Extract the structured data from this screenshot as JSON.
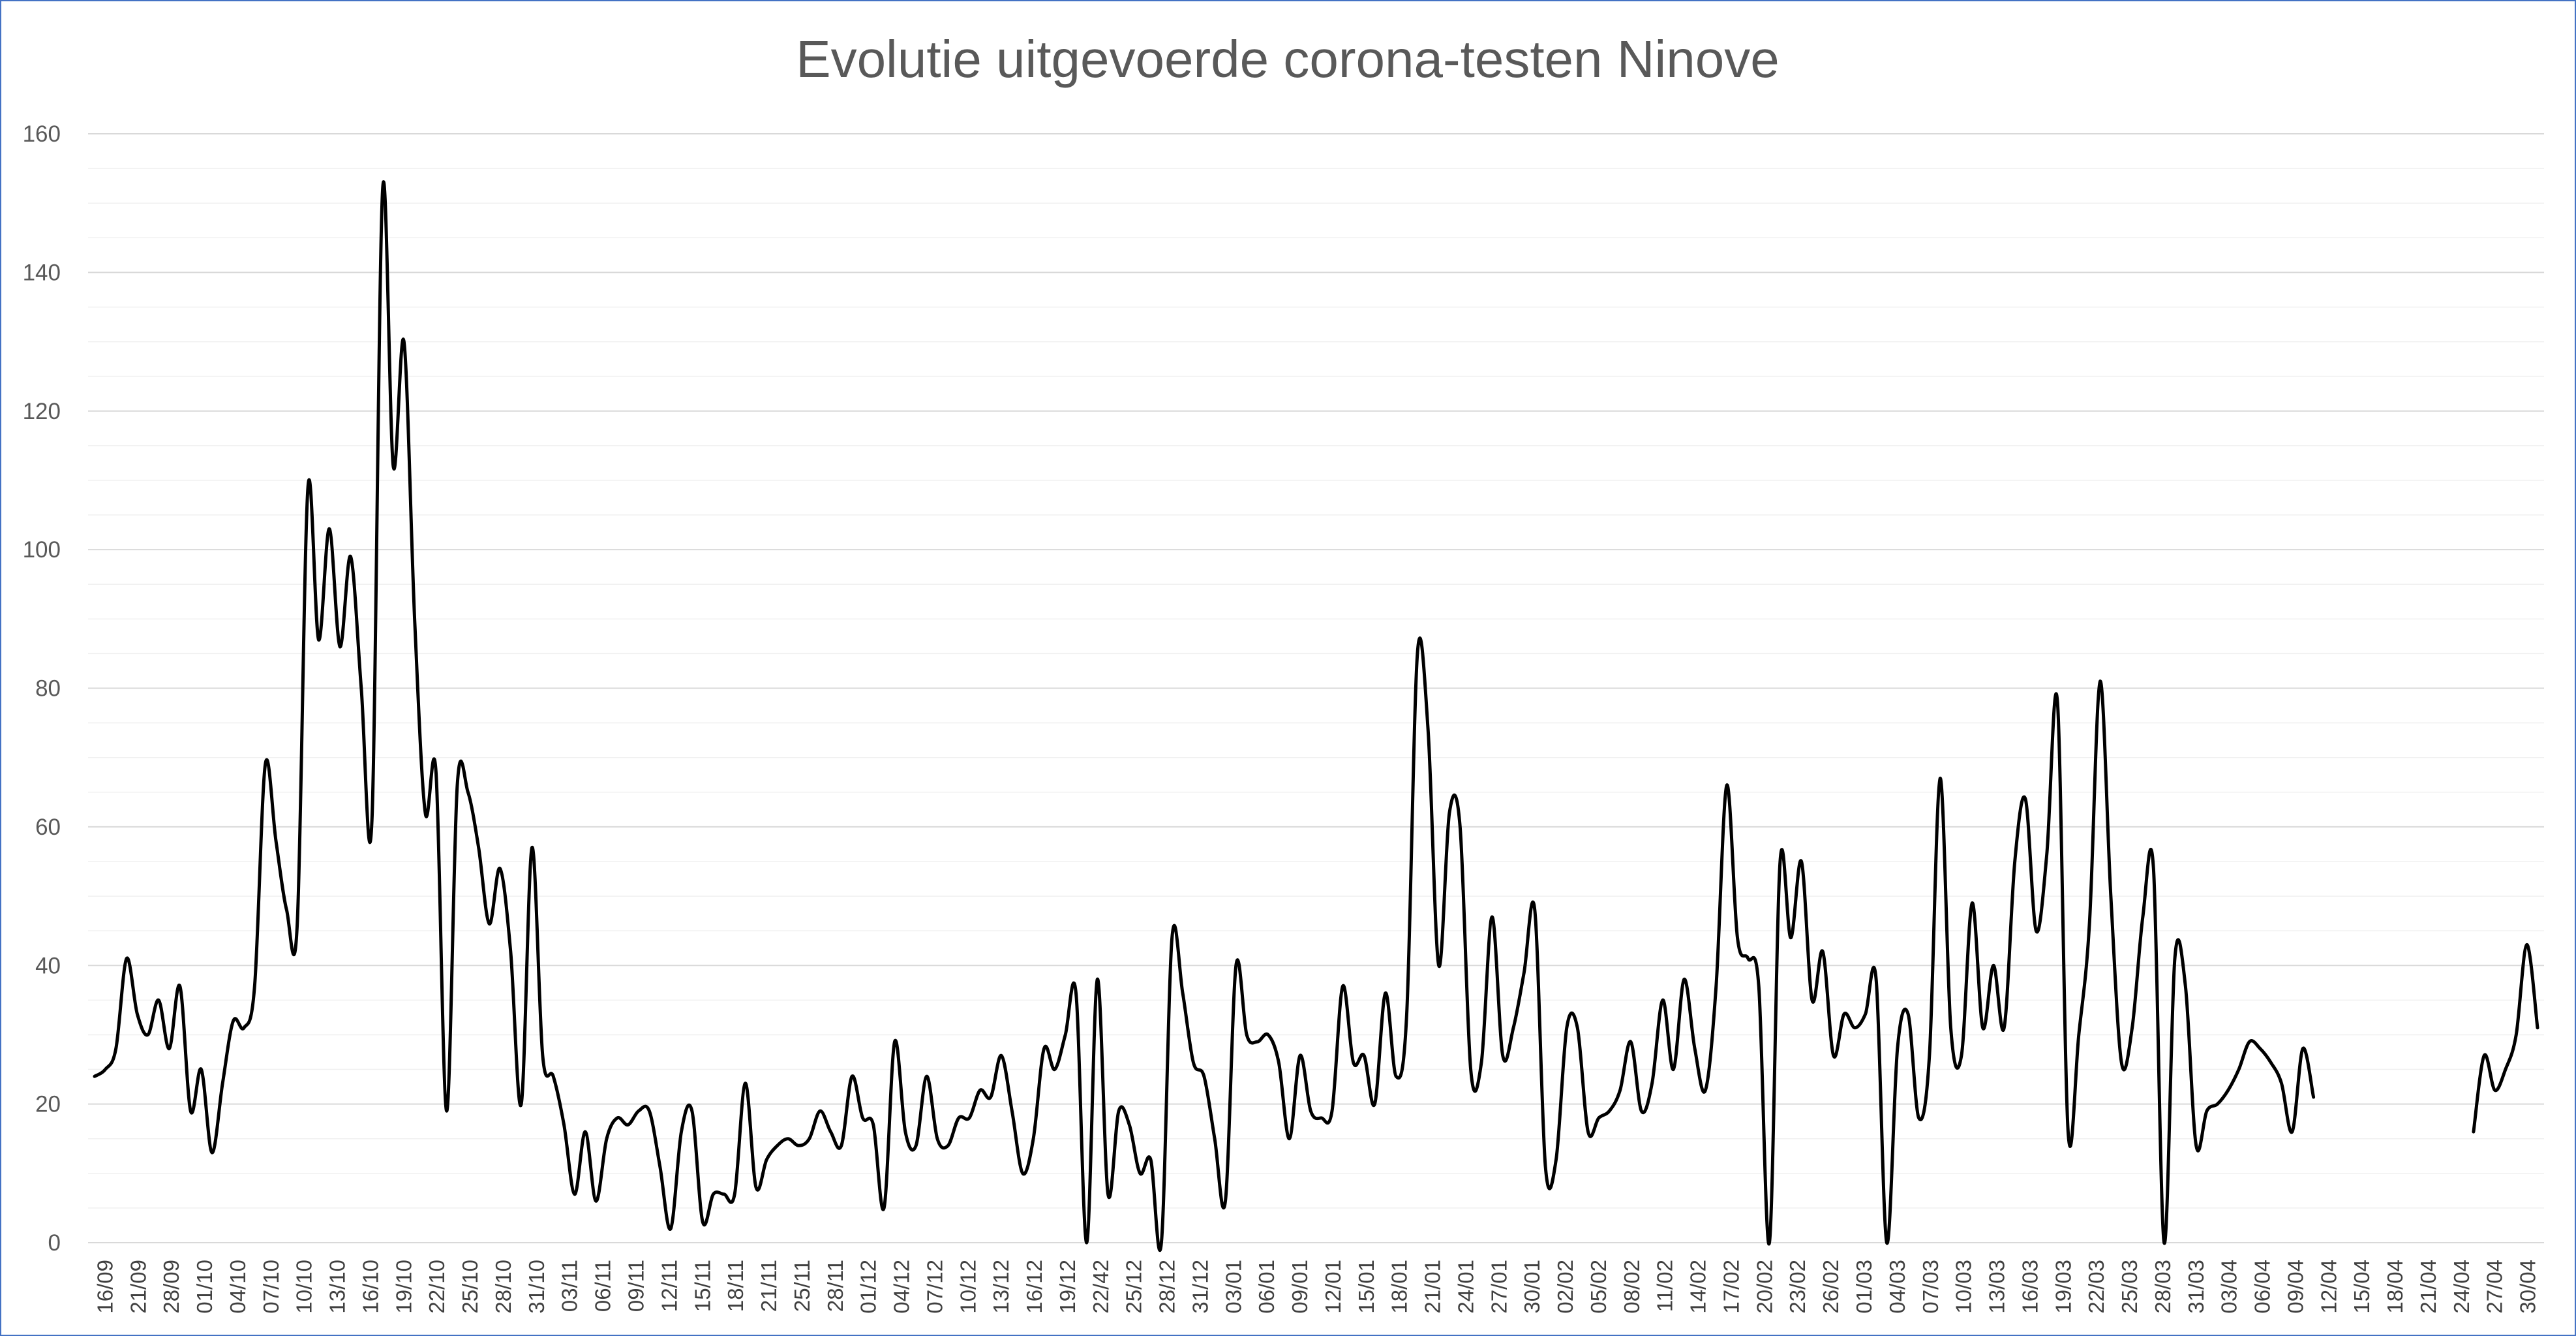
{
  "chart_data": {
    "type": "line",
    "title": "Evolutie uitgevoerde corona-testen Ninove",
    "xlabel": "",
    "ylabel": "",
    "ylim": [
      0,
      160
    ],
    "yticks": [
      0,
      20,
      40,
      60,
      80,
      100,
      120,
      140,
      160
    ],
    "grid": true,
    "legend": "none",
    "line_color": "#000000",
    "x_tick_labels": [
      "16/09",
      "21/09",
      "28/09",
      "01/10",
      "04/10",
      "07/10",
      "10/10",
      "13/10",
      "16/10",
      "19/10",
      "22/10",
      "25/10",
      "28/10",
      "31/10",
      "03/11",
      "06/11",
      "09/11",
      "12/11",
      "15/11",
      "18/11",
      "21/11",
      "25/11",
      "28/11",
      "01/12",
      "04/12",
      "07/12",
      "10/12",
      "13/12",
      "16/12",
      "19/12",
      "22/42",
      "25/12",
      "28/12",
      "31/12",
      "03/01",
      "06/01",
      "09/01",
      "12/01",
      "15/01",
      "18/01",
      "21/01",
      "24/01",
      "27/01",
      "30/01",
      "02/02",
      "05/02",
      "08/02",
      "11/02",
      "14/02",
      "17/02",
      "20/02",
      "23/02",
      "26/02",
      "01/03",
      "04/03",
      "07/03",
      "10/03",
      "13/03",
      "16/03",
      "19/03",
      "22/03",
      "25/03",
      "28/03",
      "31/03",
      "03/04",
      "06/04",
      "09/04",
      "12/04",
      "15/04",
      "18/04",
      "21/04",
      "24/04",
      "27/04",
      "30/04"
    ],
    "series": [
      {
        "values": [
          24,
          25,
          28,
          41,
          33,
          30,
          35,
          28,
          37,
          19,
          25,
          13,
          23,
          32,
          31,
          37,
          69,
          58,
          48,
          46,
          109,
          87,
          103,
          86,
          99,
          80,
          61,
          152,
          112,
          130,
          90,
          62,
          68,
          19,
          66,
          65,
          57,
          46,
          54,
          42,
          20,
          57,
          27,
          24,
          17,
          7,
          16,
          6,
          15,
          18,
          17,
          19,
          19,
          11,
          2,
          16,
          19,
          3,
          7,
          7,
          7,
          23,
          8,
          12,
          14,
          15,
          14,
          15,
          19,
          16,
          14,
          24,
          18,
          17,
          5,
          29,
          16,
          14,
          24,
          15,
          14,
          18,
          18,
          22,
          21,
          27,
          19,
          10,
          15,
          28,
          25,
          30,
          36,
          0,
          38,
          7,
          19,
          17,
          10,
          12,
          0,
          44,
          36,
          26,
          24,
          15,
          6,
          40,
          30,
          29,
          30,
          26,
          15,
          27,
          19,
          18,
          19,
          37,
          26,
          27,
          20,
          36,
          24,
          33,
          85,
          74,
          40,
          62,
          60,
          25,
          26,
          47,
          27,
          31,
          39,
          48,
          11,
          12,
          31,
          31,
          16,
          18,
          19,
          22,
          29,
          19,
          23,
          35,
          25,
          38,
          28,
          22,
          37,
          66,
          44,
          41,
          37,
          0,
          55,
          44,
          55,
          35,
          42,
          27,
          33,
          31,
          33,
          38,
          0,
          28,
          33,
          18,
          27,
          67,
          31,
          27,
          49,
          31,
          40,
          31,
          55,
          64,
          45,
          56,
          78,
          16,
          30,
          46,
          81,
          50,
          26,
          31,
          47,
          54,
          0,
          41,
          37,
          14,
          19,
          20,
          22,
          25,
          29,
          28,
          26,
          23,
          16,
          28,
          21,
          null,
          null,
          null,
          null,
          null,
          null,
          null,
          null,
          null,
          null,
          null,
          null,
          null,
          null,
          16,
          27,
          22,
          25,
          30,
          43,
          31
        ]
      }
    ]
  }
}
